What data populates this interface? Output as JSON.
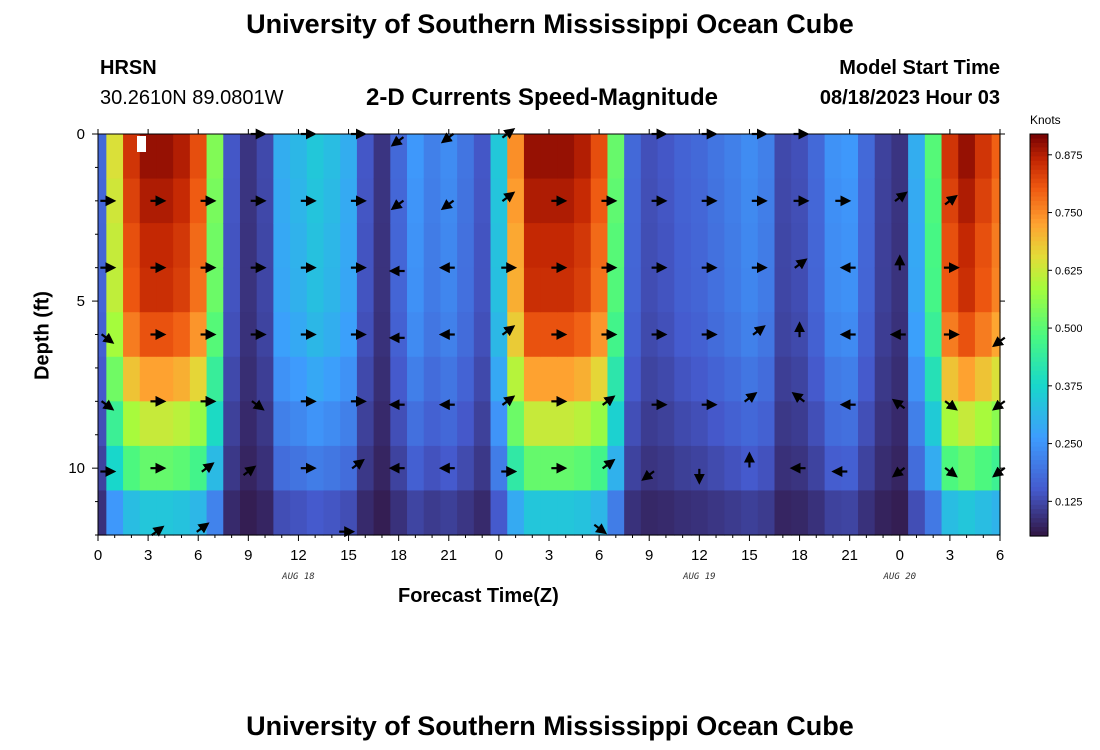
{
  "header": {
    "title": "University of Southern Mississippi Ocean Cube",
    "station": "HRSN",
    "coords": "30.2610N  89.0801W",
    "subtitle": "2-D Currents Speed-Magnitude",
    "model_label": "Model Start Time",
    "model_time": "08/18/2023 Hour 03"
  },
  "footer": {
    "title": "University of Southern Mississippi Ocean Cube"
  },
  "chart_data": {
    "type": "heatmap",
    "title": "2-D Currents Speed-Magnitude",
    "xlabel": "Forecast Time(Z)",
    "ylabel": "Depth (ft)",
    "x_tick_labels": [
      "0",
      "3",
      "6",
      "9",
      "12",
      "15",
      "18",
      "21",
      "0",
      "3",
      "6",
      "9",
      "12",
      "15",
      "18",
      "21",
      "0",
      "3",
      "6"
    ],
    "x_date_labels": [
      "AUG 18",
      "AUG 19",
      "AUG 20"
    ],
    "y_tick_labels": [
      "0",
      "5",
      "10"
    ],
    "x_range_hours": [
      0,
      54
    ],
    "y_range_ft": [
      0,
      12
    ],
    "colorbar": {
      "label": "Knots",
      "ticks": [
        "0.875",
        "0.750",
        "0.625",
        "0.500",
        "0.375",
        "0.250",
        "0.125"
      ],
      "range": [
        0.05,
        0.92
      ]
    },
    "speed_hourly_knots": [
      0.18,
      0.65,
      0.85,
      0.9,
      0.9,
      0.88,
      0.82,
      0.55,
      0.15,
      0.1,
      0.13,
      0.3,
      0.32,
      0.35,
      0.33,
      0.3,
      0.15,
      0.1,
      0.18,
      0.26,
      0.22,
      0.24,
      0.2,
      0.15,
      0.35,
      0.75,
      0.9,
      0.9,
      0.9,
      0.88,
      0.82,
      0.52,
      0.18,
      0.14,
      0.15,
      0.17,
      0.18,
      0.2,
      0.22,
      0.24,
      0.22,
      0.13,
      0.14,
      0.18,
      0.25,
      0.26,
      0.18,
      0.12,
      0.1,
      0.3,
      0.5,
      0.85,
      0.9,
      0.85,
      0.8
    ],
    "depth_factor": [
      1.0,
      0.98,
      0.96,
      0.95,
      0.9,
      0.8,
      0.68,
      0.55,
      0.35
    ],
    "arrows": [
      {
        "hour": 0.5,
        "depth": 10.1,
        "dir": "E"
      },
      {
        "hour": 3.5,
        "depth": 10.0,
        "dir": "E"
      },
      {
        "hour": 6.5,
        "depth": 10.0,
        "dir": "NE"
      },
      {
        "hour": 9,
        "depth": 10.1,
        "dir": "NE"
      },
      {
        "hour": 12.5,
        "depth": 10.0,
        "dir": "E"
      },
      {
        "hour": 15.5,
        "depth": 9.9,
        "dir": "NE"
      },
      {
        "hour": 18,
        "depth": 10.0,
        "dir": "W"
      },
      {
        "hour": 21,
        "depth": 10.0,
        "dir": "W"
      },
      {
        "hour": 24.5,
        "depth": 10.1,
        "dir": "E"
      },
      {
        "hour": 27.5,
        "depth": 10.0,
        "dir": "E"
      },
      {
        "hour": 30.5,
        "depth": 9.9,
        "dir": "NE"
      },
      {
        "hour": 33,
        "depth": 10.2,
        "dir": "SW"
      },
      {
        "hour": 36,
        "depth": 10.2,
        "dir": "S"
      },
      {
        "hour": 39,
        "depth": 9.8,
        "dir": "N"
      },
      {
        "hour": 42,
        "depth": 10.0,
        "dir": "W"
      },
      {
        "hour": 44.5,
        "depth": 10.1,
        "dir": "W"
      },
      {
        "hour": 48,
        "depth": 10.1,
        "dir": "SW"
      },
      {
        "hour": 51,
        "depth": 10.1,
        "dir": "SE"
      },
      {
        "hour": 54,
        "depth": 10.1,
        "dir": "SW"
      },
      {
        "hour": 0.5,
        "depth": 8.1,
        "dir": "SE"
      },
      {
        "hour": 3.5,
        "depth": 8.0,
        "dir": "E"
      },
      {
        "hour": 6.5,
        "depth": 8.0,
        "dir": "E"
      },
      {
        "hour": 9.5,
        "depth": 8.1,
        "dir": "SE"
      },
      {
        "hour": 12.5,
        "depth": 8.0,
        "dir": "E"
      },
      {
        "hour": 15.5,
        "depth": 8.0,
        "dir": "E"
      },
      {
        "hour": 18,
        "depth": 8.1,
        "dir": "W"
      },
      {
        "hour": 21,
        "depth": 8.1,
        "dir": "W"
      },
      {
        "hour": 24.5,
        "depth": 8.0,
        "dir": "NE"
      },
      {
        "hour": 27.5,
        "depth": 8.0,
        "dir": "E"
      },
      {
        "hour": 30.5,
        "depth": 8.0,
        "dir": "NE"
      },
      {
        "hour": 33.5,
        "depth": 8.1,
        "dir": "E"
      },
      {
        "hour": 36.5,
        "depth": 8.1,
        "dir": "E"
      },
      {
        "hour": 39,
        "depth": 7.9,
        "dir": "NE"
      },
      {
        "hour": 42,
        "depth": 7.9,
        "dir": "NW"
      },
      {
        "hour": 45,
        "depth": 8.1,
        "dir": "W"
      },
      {
        "hour": 48,
        "depth": 8.1,
        "dir": "NW"
      },
      {
        "hour": 51,
        "depth": 8.1,
        "dir": "SE"
      },
      {
        "hour": 54,
        "depth": 8.1,
        "dir": "SW"
      },
      {
        "hour": 0.5,
        "depth": 6.1,
        "dir": "SE"
      },
      {
        "hour": 3.5,
        "depth": 6.0,
        "dir": "E"
      },
      {
        "hour": 6.5,
        "depth": 6.0,
        "dir": "E"
      },
      {
        "hour": 9.5,
        "depth": 6.0,
        "dir": "E"
      },
      {
        "hour": 12.5,
        "depth": 6.0,
        "dir": "E"
      },
      {
        "hour": 15.5,
        "depth": 6.0,
        "dir": "E"
      },
      {
        "hour": 18,
        "depth": 6.1,
        "dir": "W"
      },
      {
        "hour": 21,
        "depth": 6.0,
        "dir": "W"
      },
      {
        "hour": 24.5,
        "depth": 5.9,
        "dir": "NE"
      },
      {
        "hour": 27.5,
        "depth": 6.0,
        "dir": "E"
      },
      {
        "hour": 30.5,
        "depth": 6.0,
        "dir": "E"
      },
      {
        "hour": 33.5,
        "depth": 6.0,
        "dir": "E"
      },
      {
        "hour": 36.5,
        "depth": 6.0,
        "dir": "E"
      },
      {
        "hour": 39.5,
        "depth": 5.9,
        "dir": "NE"
      },
      {
        "hour": 42,
        "depth": 5.9,
        "dir": "N"
      },
      {
        "hour": 45,
        "depth": 6.0,
        "dir": "W"
      },
      {
        "hour": 48,
        "depth": 6.0,
        "dir": "W"
      },
      {
        "hour": 51,
        "depth": 6.0,
        "dir": "E"
      },
      {
        "hour": 54,
        "depth": 6.2,
        "dir": "SW"
      },
      {
        "hour": 0.5,
        "depth": 4.0,
        "dir": "E"
      },
      {
        "hour": 3.5,
        "depth": 4.0,
        "dir": "E"
      },
      {
        "hour": 6.5,
        "depth": 4.0,
        "dir": "E"
      },
      {
        "hour": 9.5,
        "depth": 4.0,
        "dir": "E"
      },
      {
        "hour": 12.5,
        "depth": 4.0,
        "dir": "E"
      },
      {
        "hour": 15.5,
        "depth": 4.0,
        "dir": "E"
      },
      {
        "hour": 18,
        "depth": 4.1,
        "dir": "W"
      },
      {
        "hour": 21,
        "depth": 4.0,
        "dir": "W"
      },
      {
        "hour": 24.5,
        "depth": 4.0,
        "dir": "E"
      },
      {
        "hour": 27.5,
        "depth": 4.0,
        "dir": "E"
      },
      {
        "hour": 30.5,
        "depth": 4.0,
        "dir": "E"
      },
      {
        "hour": 33.5,
        "depth": 4.0,
        "dir": "E"
      },
      {
        "hour": 36.5,
        "depth": 4.0,
        "dir": "E"
      },
      {
        "hour": 39.5,
        "depth": 4.0,
        "dir": "E"
      },
      {
        "hour": 42,
        "depth": 3.9,
        "dir": "NE"
      },
      {
        "hour": 45,
        "depth": 4.0,
        "dir": "W"
      },
      {
        "hour": 48,
        "depth": 3.9,
        "dir": "N"
      },
      {
        "hour": 51,
        "depth": 4.0,
        "dir": "E"
      },
      {
        "hour": 0.5,
        "depth": 2.0,
        "dir": "E"
      },
      {
        "hour": 3.5,
        "depth": 2.0,
        "dir": "E"
      },
      {
        "hour": 6.5,
        "depth": 2.0,
        "dir": "E"
      },
      {
        "hour": 9.5,
        "depth": 2.0,
        "dir": "E"
      },
      {
        "hour": 12.5,
        "depth": 2.0,
        "dir": "E"
      },
      {
        "hour": 15.5,
        "depth": 2.0,
        "dir": "E"
      },
      {
        "hour": 18,
        "depth": 2.1,
        "dir": "SW"
      },
      {
        "hour": 21,
        "depth": 2.1,
        "dir": "SW"
      },
      {
        "hour": 24.5,
        "depth": 1.9,
        "dir": "NE"
      },
      {
        "hour": 27.5,
        "depth": 2.0,
        "dir": "E"
      },
      {
        "hour": 30.5,
        "depth": 2.0,
        "dir": "E"
      },
      {
        "hour": 33.5,
        "depth": 2.0,
        "dir": "E"
      },
      {
        "hour": 36.5,
        "depth": 2.0,
        "dir": "E"
      },
      {
        "hour": 39.5,
        "depth": 2.0,
        "dir": "E"
      },
      {
        "hour": 42,
        "depth": 2.0,
        "dir": "E"
      },
      {
        "hour": 44.5,
        "depth": 2.0,
        "dir": "E"
      },
      {
        "hour": 48,
        "depth": 1.9,
        "dir": "NE"
      },
      {
        "hour": 51,
        "depth": 2.0,
        "dir": "NE"
      },
      {
        "hour": 9.5,
        "depth": 0,
        "dir": "E"
      },
      {
        "hour": 12.5,
        "depth": 0,
        "dir": "E"
      },
      {
        "hour": 15.5,
        "depth": 0,
        "dir": "E"
      },
      {
        "hour": 18,
        "depth": 0.2,
        "dir": "SW"
      },
      {
        "hour": 21,
        "depth": 0.1,
        "dir": "SW"
      },
      {
        "hour": 24.5,
        "depth": 0,
        "dir": "NE"
      },
      {
        "hour": 33.5,
        "depth": 0,
        "dir": "E"
      },
      {
        "hour": 36.5,
        "depth": 0,
        "dir": "E"
      },
      {
        "hour": 39.5,
        "depth": 0,
        "dir": "E"
      },
      {
        "hour": 42,
        "depth": 0,
        "dir": "E"
      },
      {
        "hour": 3.5,
        "depth": 11.9,
        "dir": "NE"
      },
      {
        "hour": 6.2,
        "depth": 11.8,
        "dir": "NE"
      },
      {
        "hour": 14.8,
        "depth": 11.9,
        "dir": "E"
      },
      {
        "hour": 30,
        "depth": 11.8,
        "dir": "SE"
      }
    ]
  }
}
